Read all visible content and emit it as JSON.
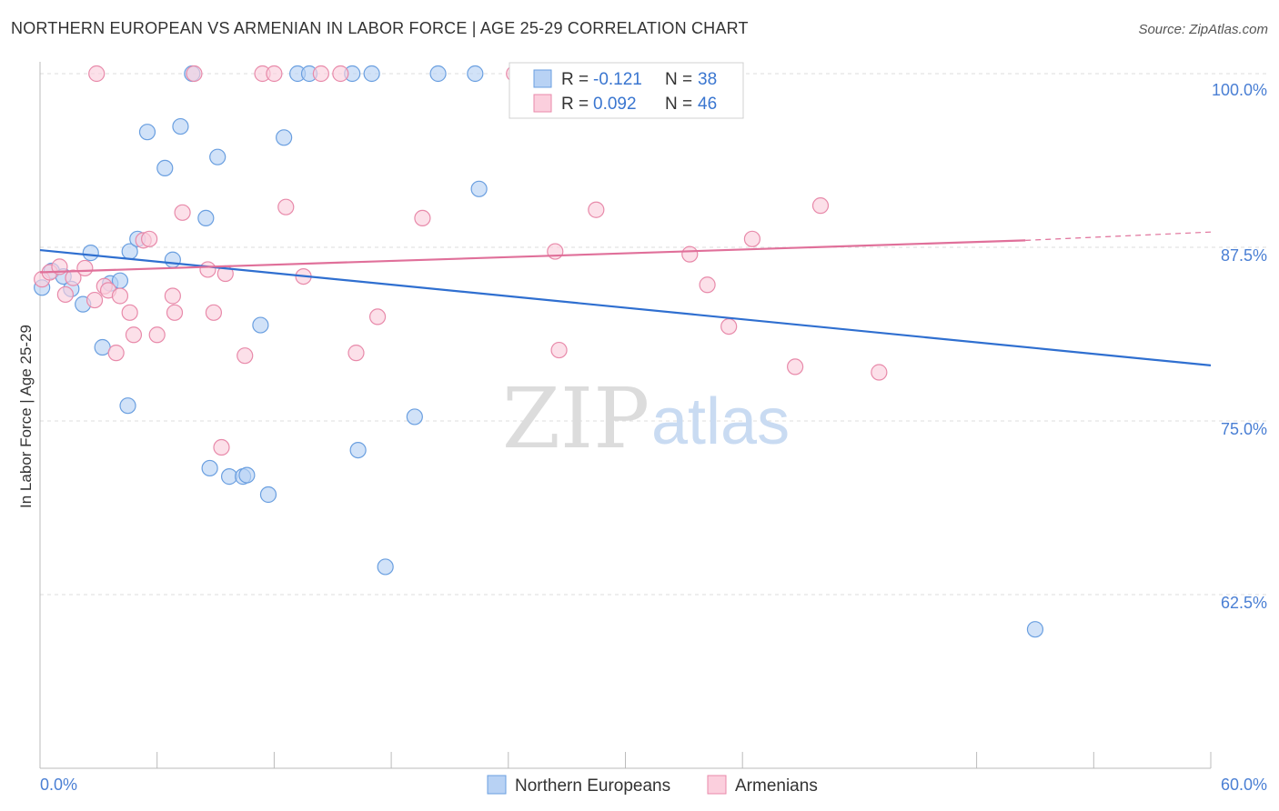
{
  "header": {
    "title": "NORTHERN EUROPEAN VS ARMENIAN IN LABOR FORCE | AGE 25-29 CORRELATION CHART",
    "source": "Source: ZipAtlas.com"
  },
  "watermark": {
    "part1": "ZIP",
    "part2": "atlas"
  },
  "legend_box": {
    "rows": [
      {
        "r_label": "R = ",
        "r_value": "-0.121",
        "n_label": "N = ",
        "n_value": "38",
        "color": "#a8c8f0",
        "stroke": "#6a9fe0"
      },
      {
        "r_label": "R = ",
        "r_value": "0.092",
        "n_label": "N = ",
        "n_value": "46",
        "color": "#f8bcd0",
        "stroke": "#e88aaa"
      }
    ]
  },
  "bottom_legend": {
    "items": [
      {
        "label": "Northern Europeans",
        "color": "#b8d2f4",
        "stroke": "#6a9fe0"
      },
      {
        "label": "Armenians",
        "color": "#fbcfdd",
        "stroke": "#e88aaa"
      }
    ]
  },
  "chart_data": {
    "type": "scatter",
    "title": "NORTHERN EUROPEAN VS ARMENIAN IN LABOR FORCE | AGE 25-29 CORRELATION CHART",
    "xlabel": "",
    "ylabel": "In Labor Force | Age 25-29",
    "xlim": [
      0,
      60
    ],
    "ylim": [
      50,
      101
    ],
    "x_tick_labels": [
      "0.0%",
      "60.0%"
    ],
    "y_ticks": [
      62.5,
      75.0,
      87.5,
      100.0
    ],
    "y_tick_labels": [
      "62.5%",
      "75.0%",
      "87.5%",
      "100.0%"
    ],
    "grid": true,
    "legend_position": "top-center",
    "series": [
      {
        "name": "Northern Europeans",
        "color": "#6a9fe0",
        "fill": "#b8d2f4",
        "trend_color": "#2f6fd0",
        "trend": {
          "x": [
            0,
            60
          ],
          "y": [
            87.3,
            79.0
          ]
        },
        "points": [
          [
            0.1,
            84.6
          ],
          [
            0.6,
            85.8
          ],
          [
            1.2,
            85.4
          ],
          [
            1.6,
            84.5
          ],
          [
            2.2,
            83.4
          ],
          [
            2.6,
            87.1
          ],
          [
            3.2,
            80.3
          ],
          [
            3.6,
            84.9
          ],
          [
            4.1,
            85.1
          ],
          [
            4.6,
            87.2
          ],
          [
            5.0,
            88.1
          ],
          [
            5.5,
            95.8
          ],
          [
            6.4,
            93.2
          ],
          [
            6.8,
            86.6
          ],
          [
            7.2,
            96.2
          ],
          [
            7.8,
            100.0
          ],
          [
            8.5,
            89.6
          ],
          [
            8.7,
            71.6
          ],
          [
            9.1,
            94.0
          ],
          [
            9.7,
            71.0
          ],
          [
            10.4,
            71.0
          ],
          [
            10.6,
            71.1
          ],
          [
            11.3,
            81.9
          ],
          [
            11.7,
            69.7
          ],
          [
            12.5,
            95.4
          ],
          [
            13.2,
            100.0
          ],
          [
            13.8,
            100.0
          ],
          [
            16.0,
            100.0
          ],
          [
            16.3,
            72.9
          ],
          [
            17.0,
            100.0
          ],
          [
            17.7,
            64.5
          ],
          [
            19.2,
            75.3
          ],
          [
            20.4,
            100.0
          ],
          [
            22.5,
            91.7
          ],
          [
            22.3,
            100.0
          ],
          [
            4.5,
            76.1
          ],
          [
            29.9,
            100.0
          ],
          [
            51.0,
            60.0
          ]
        ]
      },
      {
        "name": "Armenians",
        "color": "#e88aaa",
        "fill": "#fbcfdd",
        "trend_color": "#e0709a",
        "trend": {
          "x": [
            0,
            50.5
          ],
          "y": [
            85.7,
            88.0
          ]
        },
        "trend_dashed": {
          "x": [
            50.5,
            60
          ],
          "y": [
            88.0,
            88.6
          ]
        },
        "points": [
          [
            0.1,
            85.2
          ],
          [
            0.5,
            85.7
          ],
          [
            1.0,
            86.1
          ],
          [
            1.3,
            84.1
          ],
          [
            1.7,
            85.3
          ],
          [
            2.3,
            86.0
          ],
          [
            2.8,
            83.7
          ],
          [
            3.3,
            84.7
          ],
          [
            3.5,
            84.4
          ],
          [
            4.1,
            84.0
          ],
          [
            4.6,
            82.8
          ],
          [
            4.8,
            81.2
          ],
          [
            3.9,
            79.9
          ],
          [
            5.3,
            88.0
          ],
          [
            5.6,
            88.1
          ],
          [
            6.0,
            81.2
          ],
          [
            6.8,
            84.0
          ],
          [
            6.9,
            82.8
          ],
          [
            7.3,
            90.0
          ],
          [
            8.6,
            85.9
          ],
          [
            8.9,
            82.8
          ],
          [
            9.3,
            73.1
          ],
          [
            9.5,
            85.6
          ],
          [
            10.5,
            79.7
          ],
          [
            11.4,
            100.0
          ],
          [
            12.6,
            90.4
          ],
          [
            13.5,
            85.4
          ],
          [
            14.4,
            100.0
          ],
          [
            16.2,
            79.9
          ],
          [
            17.3,
            82.5
          ],
          [
            19.6,
            89.6
          ],
          [
            24.3,
            100.0
          ],
          [
            26.4,
            87.2
          ],
          [
            26.6,
            80.1
          ],
          [
            28.5,
            90.2
          ],
          [
            33.3,
            87.0
          ],
          [
            34.2,
            84.8
          ],
          [
            35.3,
            81.8
          ],
          [
            36.5,
            88.1
          ],
          [
            38.7,
            78.9
          ],
          [
            40.0,
            90.5
          ],
          [
            43.0,
            78.5
          ],
          [
            2.9,
            100.0
          ],
          [
            7.9,
            100.0
          ],
          [
            12.0,
            100.0
          ],
          [
            15.4,
            100.0
          ]
        ]
      }
    ]
  }
}
